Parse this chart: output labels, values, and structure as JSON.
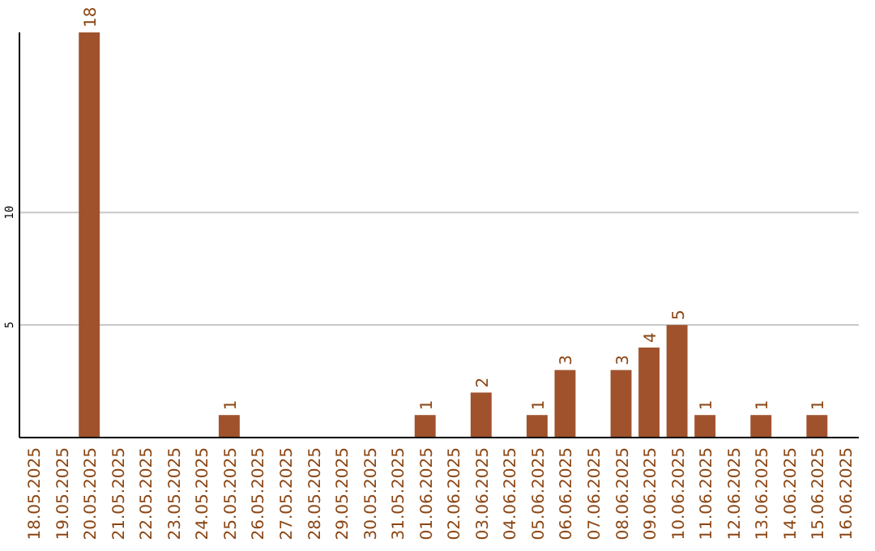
{
  "chart_data": {
    "type": "bar",
    "categories": [
      "18.05.2025",
      "19.05.2025",
      "20.05.2025",
      "21.05.2025",
      "22.05.2025",
      "23.05.2025",
      "24.05.2025",
      "25.05.2025",
      "26.05.2025",
      "27.05.2025",
      "28.05.2025",
      "29.05.2025",
      "30.05.2025",
      "31.05.2025",
      "01.06.2025",
      "02.06.2025",
      "03.06.2025",
      "04.06.2025",
      "05.06.2025",
      "06.06.2025",
      "07.06.2025",
      "08.06.2025",
      "09.06.2025",
      "10.06.2025",
      "11.06.2025",
      "12.06.2025",
      "13.06.2025",
      "14.06.2025",
      "15.06.2025",
      "16.06.2025"
    ],
    "values": [
      null,
      null,
      18,
      null,
      null,
      null,
      null,
      1,
      null,
      null,
      null,
      null,
      null,
      null,
      1,
      null,
      2,
      null,
      1,
      3,
      null,
      3,
      4,
      5,
      1,
      null,
      1,
      null,
      1,
      null
    ],
    "color": "#a0522d",
    "ylim": [
      0,
      18
    ],
    "yticks": [
      5,
      10
    ],
    "grid": "y",
    "data_labels": true
  }
}
